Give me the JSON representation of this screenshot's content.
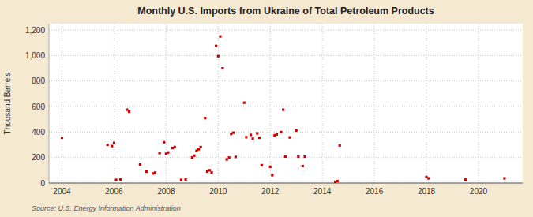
{
  "chart_data": {
    "type": "scatter",
    "title": "Monthly U.S. Imports from Ukraine of Total Petroleum Products",
    "ylabel": "Thousand Barrels",
    "source": "Source: U.S. Energy Information Administration",
    "color": "#cc0000",
    "marker": "square",
    "grid": true,
    "xlim": [
      2003.5,
      2021.7
    ],
    "ylim": [
      0,
      1250
    ],
    "xticks": [
      2004,
      2006,
      2008,
      2010,
      2012,
      2014,
      2016,
      2018,
      2020
    ],
    "yticks": [
      0,
      200,
      400,
      600,
      800,
      {
        "value": 1000,
        "label": "1,000"
      },
      {
        "value": 1200,
        "label": "1,200"
      }
    ],
    "x": [
      2004.0,
      2005.75,
      2005.92,
      2006.0,
      2006.08,
      2006.25,
      2006.5,
      2006.58,
      2007.0,
      2007.25,
      2007.5,
      2007.58,
      2007.75,
      2007.92,
      2008.0,
      2008.08,
      2008.25,
      2008.33,
      2008.58,
      2008.75,
      2009.0,
      2009.08,
      2009.17,
      2009.25,
      2009.33,
      2009.5,
      2009.58,
      2009.67,
      2009.75,
      2009.92,
      2010.0,
      2010.08,
      2010.17,
      2010.33,
      2010.42,
      2010.5,
      2010.58,
      2010.67,
      2011.0,
      2011.08,
      2011.25,
      2011.33,
      2011.5,
      2011.58,
      2011.67,
      2012.0,
      2012.08,
      2012.17,
      2012.25,
      2012.42,
      2012.5,
      2012.58,
      2012.75,
      2013.0,
      2013.08,
      2013.25,
      2013.33,
      2014.5,
      2014.58,
      2014.67,
      2018.0,
      2018.08,
      2019.5,
      2021.0
    ],
    "values": [
      355,
      300,
      290,
      315,
      25,
      28,
      575,
      560,
      145,
      90,
      75,
      82,
      235,
      320,
      230,
      240,
      275,
      282,
      25,
      28,
      200,
      215,
      253,
      265,
      282,
      510,
      90,
      100,
      82,
      1075,
      995,
      1150,
      900,
      185,
      200,
      385,
      395,
      205,
      630,
      360,
      378,
      348,
      390,
      355,
      140,
      128,
      62,
      375,
      382,
      400,
      575,
      208,
      358,
      412,
      207,
      133,
      207,
      10,
      15,
      295,
      47,
      37,
      27,
      37
    ]
  }
}
